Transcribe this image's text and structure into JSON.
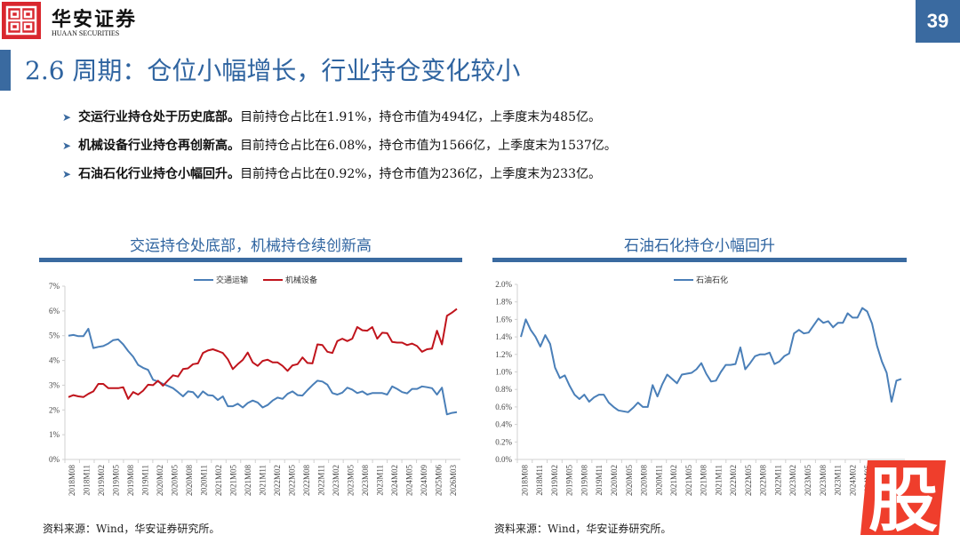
{
  "header": {
    "brand_cn": "华安证券",
    "brand_en": "HUAAN SECURITIES",
    "page_number": "39",
    "accent_color": "#3a6aa0",
    "logo_color": "#d9272e"
  },
  "page_title": "2.6 周期：仓位小幅增长，行业持仓变化较小",
  "bullets": [
    {
      "bold": "交运行业持仓处于历史底部。",
      "text": "目前持仓占比在1.91%，持仓市值为494亿，上季度末为485亿。"
    },
    {
      "bold": "机械设备行业持仓再创新高。",
      "text": "目前持仓占比在6.08%，持仓市值为1566亿，上季度末为1537亿。"
    },
    {
      "bold": "石油石化行业持仓小幅回升。",
      "text": "目前持仓占比在0.92%，持仓市值为236亿，上季度末为233亿。"
    }
  ],
  "left_panel": {
    "title": "交运持仓处底部，机械持仓续创新高",
    "source": "资料来源：Wind，华安证券研究所。"
  },
  "right_panel": {
    "title": "石油石化持仓小幅回升",
    "source": "资料来源：Wind，华安证券研究所。"
  },
  "stamp_char": "股",
  "chart_data": [
    {
      "type": "line",
      "title": "交运持仓处底部，机械持仓续创新高",
      "xlabel": "",
      "ylabel": "",
      "ylim": [
        0,
        7
      ],
      "yticks": [
        "0%",
        "1%",
        "2%",
        "3%",
        "4%",
        "5%",
        "6%",
        "7%"
      ],
      "x_tick_labels": [
        "2018M08",
        "2018M11",
        "2019M02",
        "2019M05",
        "2019M08",
        "2019M11",
        "2020M02",
        "2020M05",
        "2020M08",
        "2020M11",
        "2021M02",
        "2021M05",
        "2021M08",
        "2021M11",
        "2022M02",
        "2022M05",
        "2022M08",
        "2022M11",
        "2023M02",
        "2023M05",
        "2023M08",
        "2023M11",
        "2024M02",
        "2024M05",
        "2024M09",
        "2025M06",
        "2026M03"
      ],
      "legend_position": "top",
      "grid": false,
      "series": [
        {
          "name": "交通运输",
          "color": "#4a7fb8",
          "values": [
            5.0,
            5.03,
            4.98,
            4.98,
            5.28,
            4.5,
            4.55,
            4.58,
            4.68,
            4.82,
            4.85,
            4.65,
            4.38,
            4.15,
            3.82,
            3.7,
            3.62,
            3.22,
            3.15,
            3.05,
            2.97,
            2.88,
            2.72,
            2.55,
            2.75,
            2.72,
            2.5,
            2.75,
            2.6,
            2.58,
            2.4,
            2.55,
            2.15,
            2.15,
            2.25,
            2.1,
            2.28,
            2.38,
            2.3,
            2.1,
            2.2,
            2.38,
            2.5,
            2.45,
            2.65,
            2.75,
            2.6,
            2.58,
            2.8,
            3.0,
            3.18,
            3.15,
            3.02,
            2.68,
            2.62,
            2.7,
            2.9,
            2.82,
            2.68,
            2.75,
            2.62,
            2.68,
            2.68,
            2.68,
            2.62,
            2.95,
            2.85,
            2.72,
            2.67,
            2.85,
            2.85,
            2.95,
            2.92,
            2.88,
            2.62,
            2.9,
            1.82,
            1.88,
            1.91
          ]
        },
        {
          "name": "机械设备",
          "color": "#c0141c",
          "values": [
            2.52,
            2.6,
            2.55,
            2.52,
            2.65,
            2.75,
            3.05,
            3.05,
            2.88,
            2.88,
            2.88,
            2.92,
            2.45,
            2.72,
            2.62,
            2.78,
            3.02,
            3.0,
            3.18,
            2.98,
            3.2,
            3.4,
            3.35,
            3.65,
            3.68,
            3.85,
            3.88,
            4.3,
            4.4,
            4.45,
            4.38,
            4.3,
            4.05,
            3.65,
            3.85,
            4.02,
            4.32,
            3.92,
            3.78,
            3.98,
            4.03,
            3.92,
            3.92,
            3.78,
            3.58,
            3.8,
            3.85,
            4.12,
            3.9,
            3.88,
            4.65,
            4.62,
            4.35,
            4.3,
            4.78,
            4.88,
            4.78,
            4.88,
            5.35,
            5.22,
            5.2,
            5.35,
            4.88,
            5.12,
            5.1,
            4.75,
            4.72,
            4.72,
            4.62,
            4.68,
            4.58,
            4.35,
            4.45,
            4.48,
            5.2,
            4.65,
            5.8,
            5.93,
            6.08
          ]
        }
      ]
    },
    {
      "type": "line",
      "title": "石油石化持仓小幅回升",
      "xlabel": "",
      "ylabel": "",
      "ylim": [
        0,
        2.0
      ],
      "yticks": [
        "0.0%",
        "0.2%",
        "0.4%",
        "0.6%",
        "0.8%",
        "1.0%",
        "1.2%",
        "1.4%",
        "1.6%",
        "1.8%",
        "2.0%"
      ],
      "x_tick_labels": [
        "2018M08",
        "2018M11",
        "2019M02",
        "2019M05",
        "2019M08",
        "2019M11",
        "2020M02",
        "2020M05",
        "2020M08",
        "2020M11",
        "2021M02",
        "2021M05",
        "2021M08",
        "2021M11",
        "2022M02",
        "2022M05",
        "2022M08",
        "2022M11",
        "2023M02",
        "2023M05",
        "2023M08",
        "2023M11",
        "2024M02",
        "2024M05"
      ],
      "legend_position": "top",
      "grid": false,
      "series": [
        {
          "name": "石油石化",
          "color": "#4a7fb8",
          "values": [
            1.4,
            1.6,
            1.48,
            1.4,
            1.29,
            1.42,
            1.32,
            1.05,
            0.93,
            0.96,
            0.84,
            0.74,
            0.69,
            0.74,
            0.66,
            0.71,
            0.74,
            0.74,
            0.65,
            0.6,
            0.56,
            0.55,
            0.54,
            0.59,
            0.65,
            0.6,
            0.6,
            0.85,
            0.72,
            0.86,
            0.97,
            0.92,
            0.87,
            0.97,
            0.98,
            0.99,
            1.03,
            1.1,
            0.98,
            0.89,
            0.9,
            1.0,
            1.08,
            1.08,
            1.09,
            1.28,
            1.03,
            1.1,
            1.18,
            1.2,
            1.2,
            1.22,
            1.09,
            1.12,
            1.18,
            1.21,
            1.44,
            1.48,
            1.44,
            1.45,
            1.53,
            1.61,
            1.56,
            1.58,
            1.51,
            1.56,
            1.56,
            1.67,
            1.62,
            1.62,
            1.73,
            1.69,
            1.55,
            1.3,
            1.12,
            0.99,
            0.66,
            0.9,
            0.92
          ]
        }
      ]
    }
  ]
}
